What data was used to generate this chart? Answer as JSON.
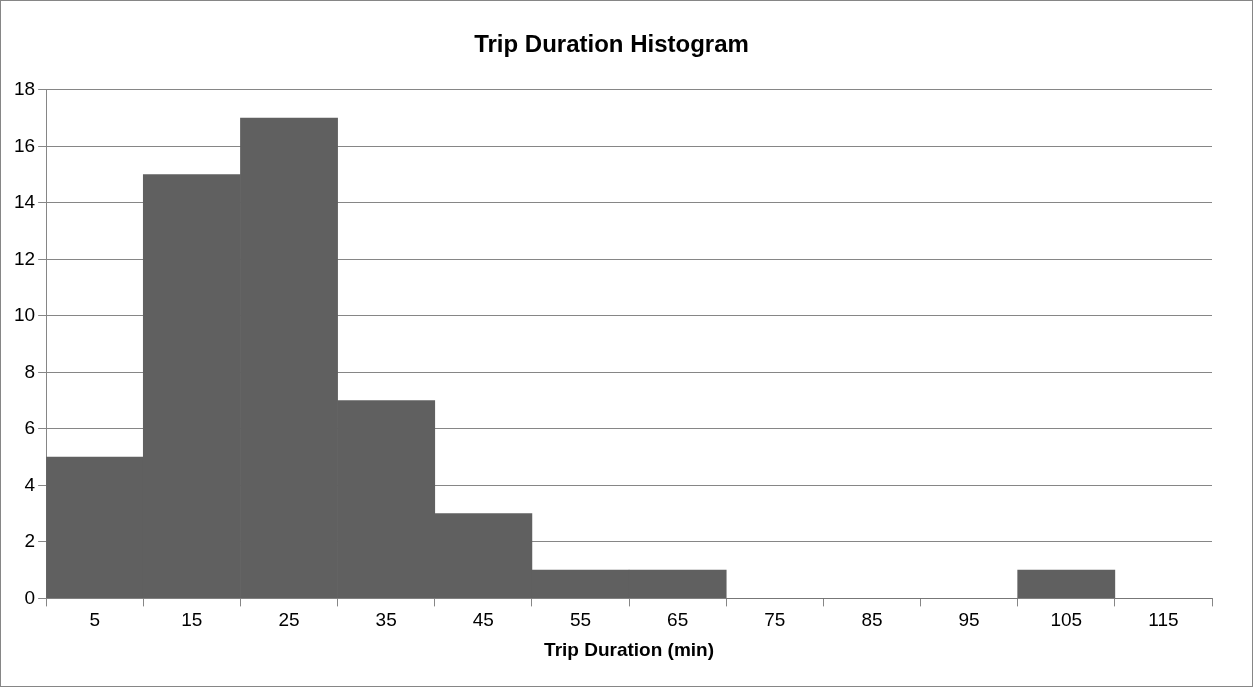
{
  "chart_data": {
    "type": "bar",
    "title": "Trip Duration Histogram",
    "xlabel": "Trip Duration (min)",
    "categories": [
      "5",
      "15",
      "25",
      "35",
      "45",
      "55",
      "65",
      "75",
      "85",
      "95",
      "105",
      "115"
    ],
    "values": [
      5,
      15,
      17,
      7,
      3,
      1,
      1,
      0,
      0,
      0,
      1,
      0
    ],
    "color": "#606060",
    "ylim": [
      0,
      18
    ],
    "yticks": [
      0,
      2,
      4,
      6,
      8,
      10,
      12,
      14,
      16,
      18
    ],
    "grid": "y"
  }
}
